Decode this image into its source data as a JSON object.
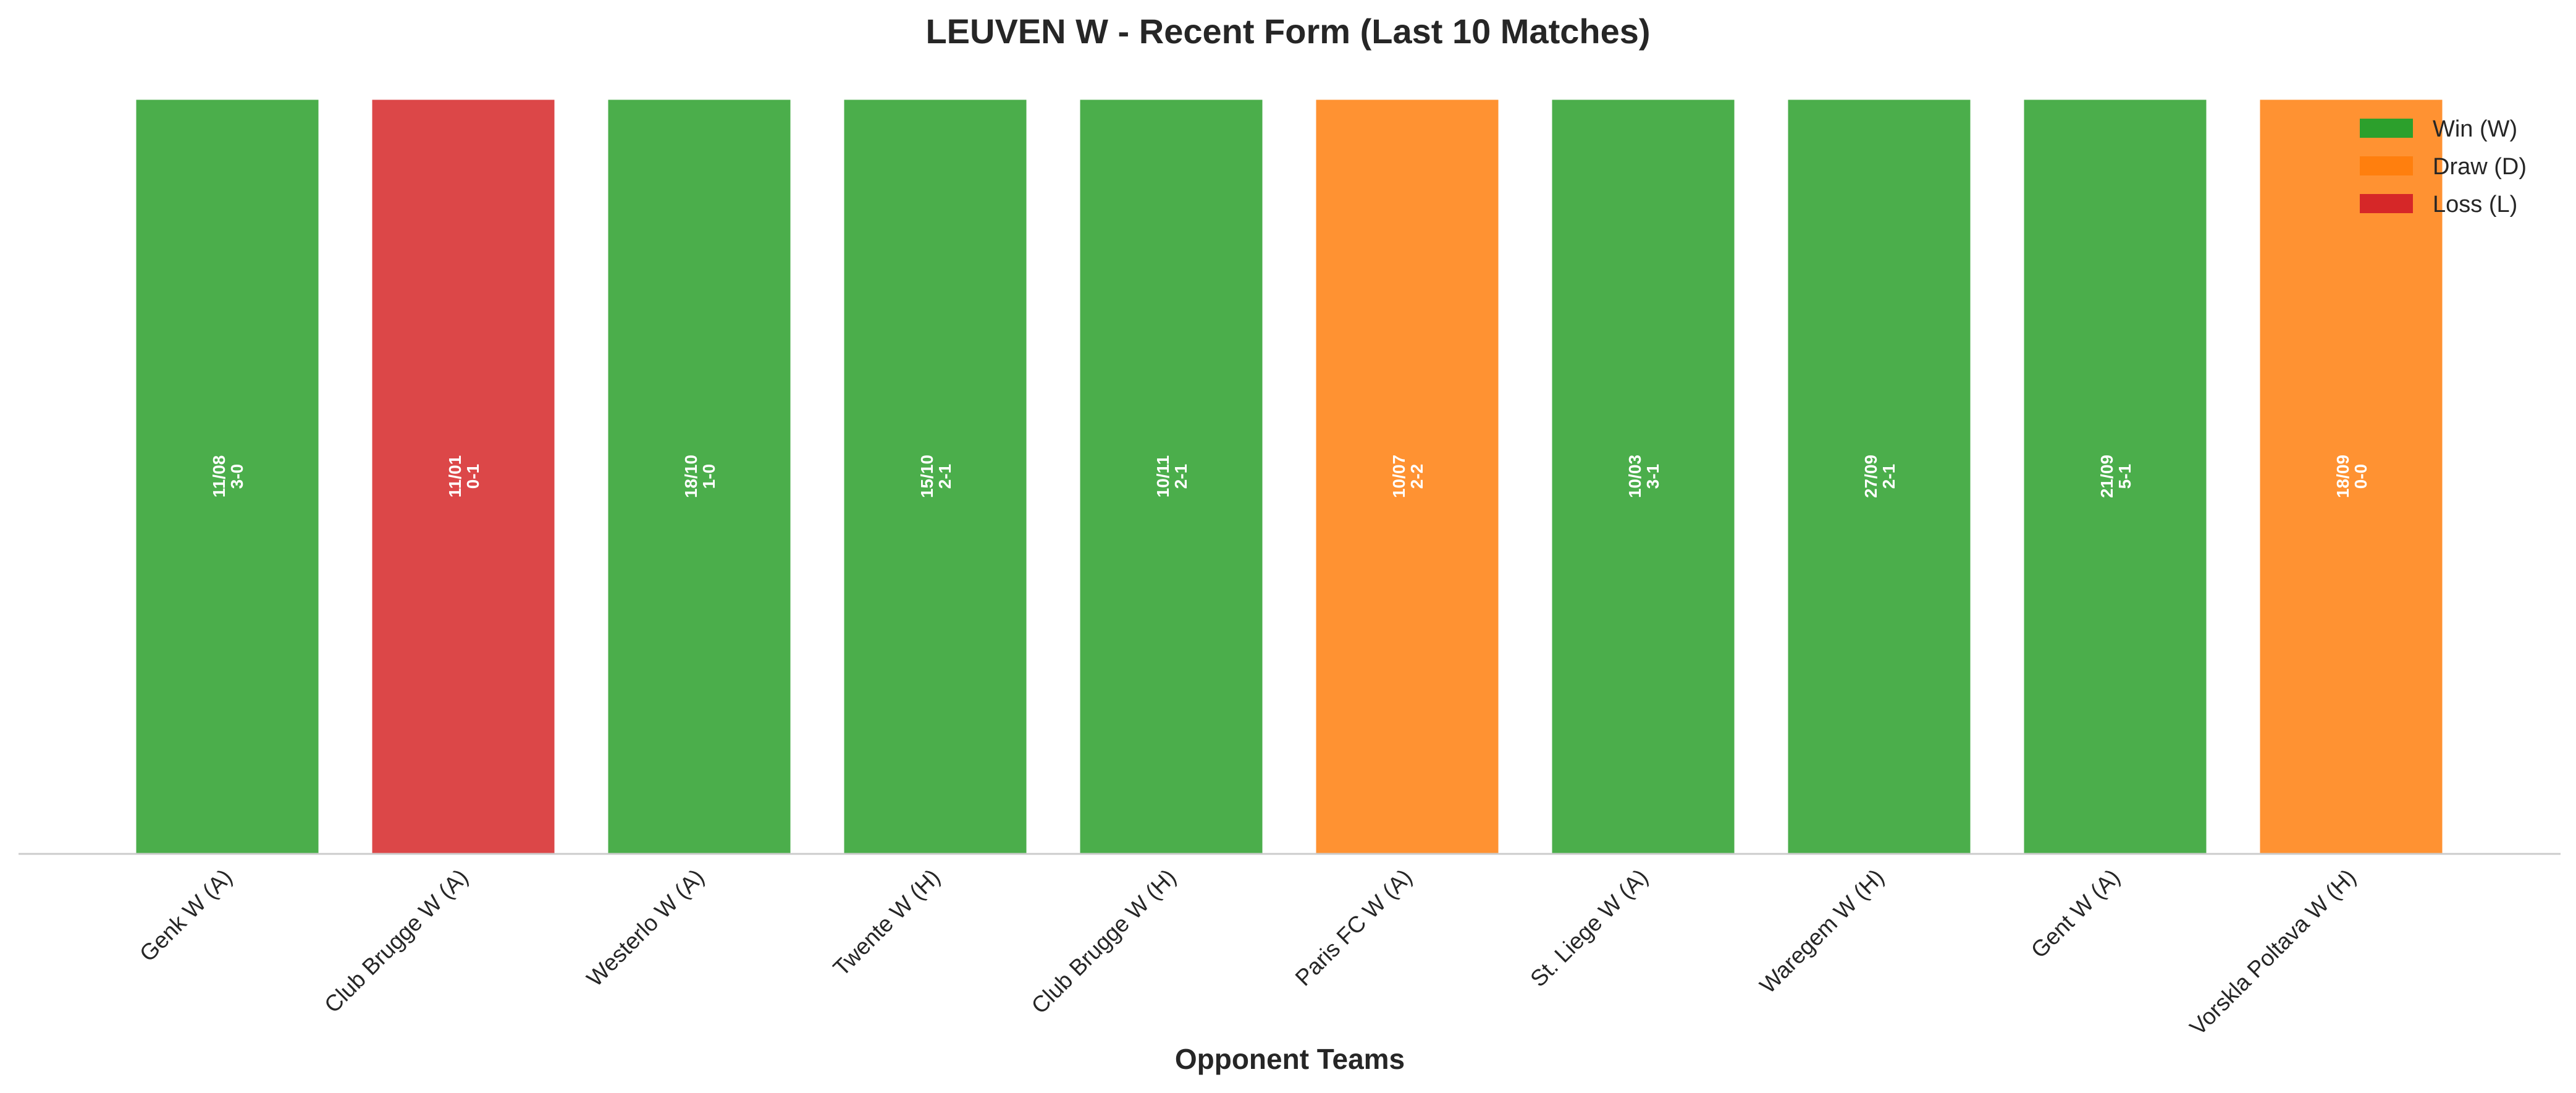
{
  "chart_data": {
    "type": "bar",
    "title": "LEUVEN W - Recent Form (Last 10 Matches)",
    "xlabel": "Opponent Teams",
    "ylabel": "",
    "ylim": [
      0,
      1
    ],
    "categories": [
      "Genk W (A)",
      "Club Brugge W (A)",
      "Westerlo W (A)",
      "Twente W (H)",
      "Club Brugge W (H)",
      "Paris FC W (A)",
      "St. Liege W (A)",
      "Waregem W (H)",
      "Gent W (A)",
      "Vorskla Poltava W (H)"
    ],
    "values": [
      1,
      1,
      1,
      1,
      1,
      1,
      1,
      1,
      1,
      1
    ],
    "results": [
      "W",
      "L",
      "W",
      "W",
      "W",
      "D",
      "W",
      "W",
      "W",
      "D"
    ],
    "dates": [
      "11/08",
      "11/01",
      "18/10",
      "15/10",
      "10/11",
      "10/07",
      "10/03",
      "27/09",
      "21/09",
      "18/09"
    ],
    "scores": [
      "3-0",
      "0-1",
      "1-0",
      "2-1",
      "2-1",
      "2-2",
      "3-1",
      "2-1",
      "5-1",
      "0-0"
    ],
    "colors": {
      "W": "#2ca02c",
      "D": "#ff7f0e",
      "L": "#d62728"
    },
    "legend": {
      "position": "top-right",
      "entries": [
        {
          "key": "W",
          "label": "Win (W)"
        },
        {
          "key": "D",
          "label": "Draw (D)"
        },
        {
          "key": "L",
          "label": "Loss (L)"
        }
      ]
    },
    "grid": false
  }
}
